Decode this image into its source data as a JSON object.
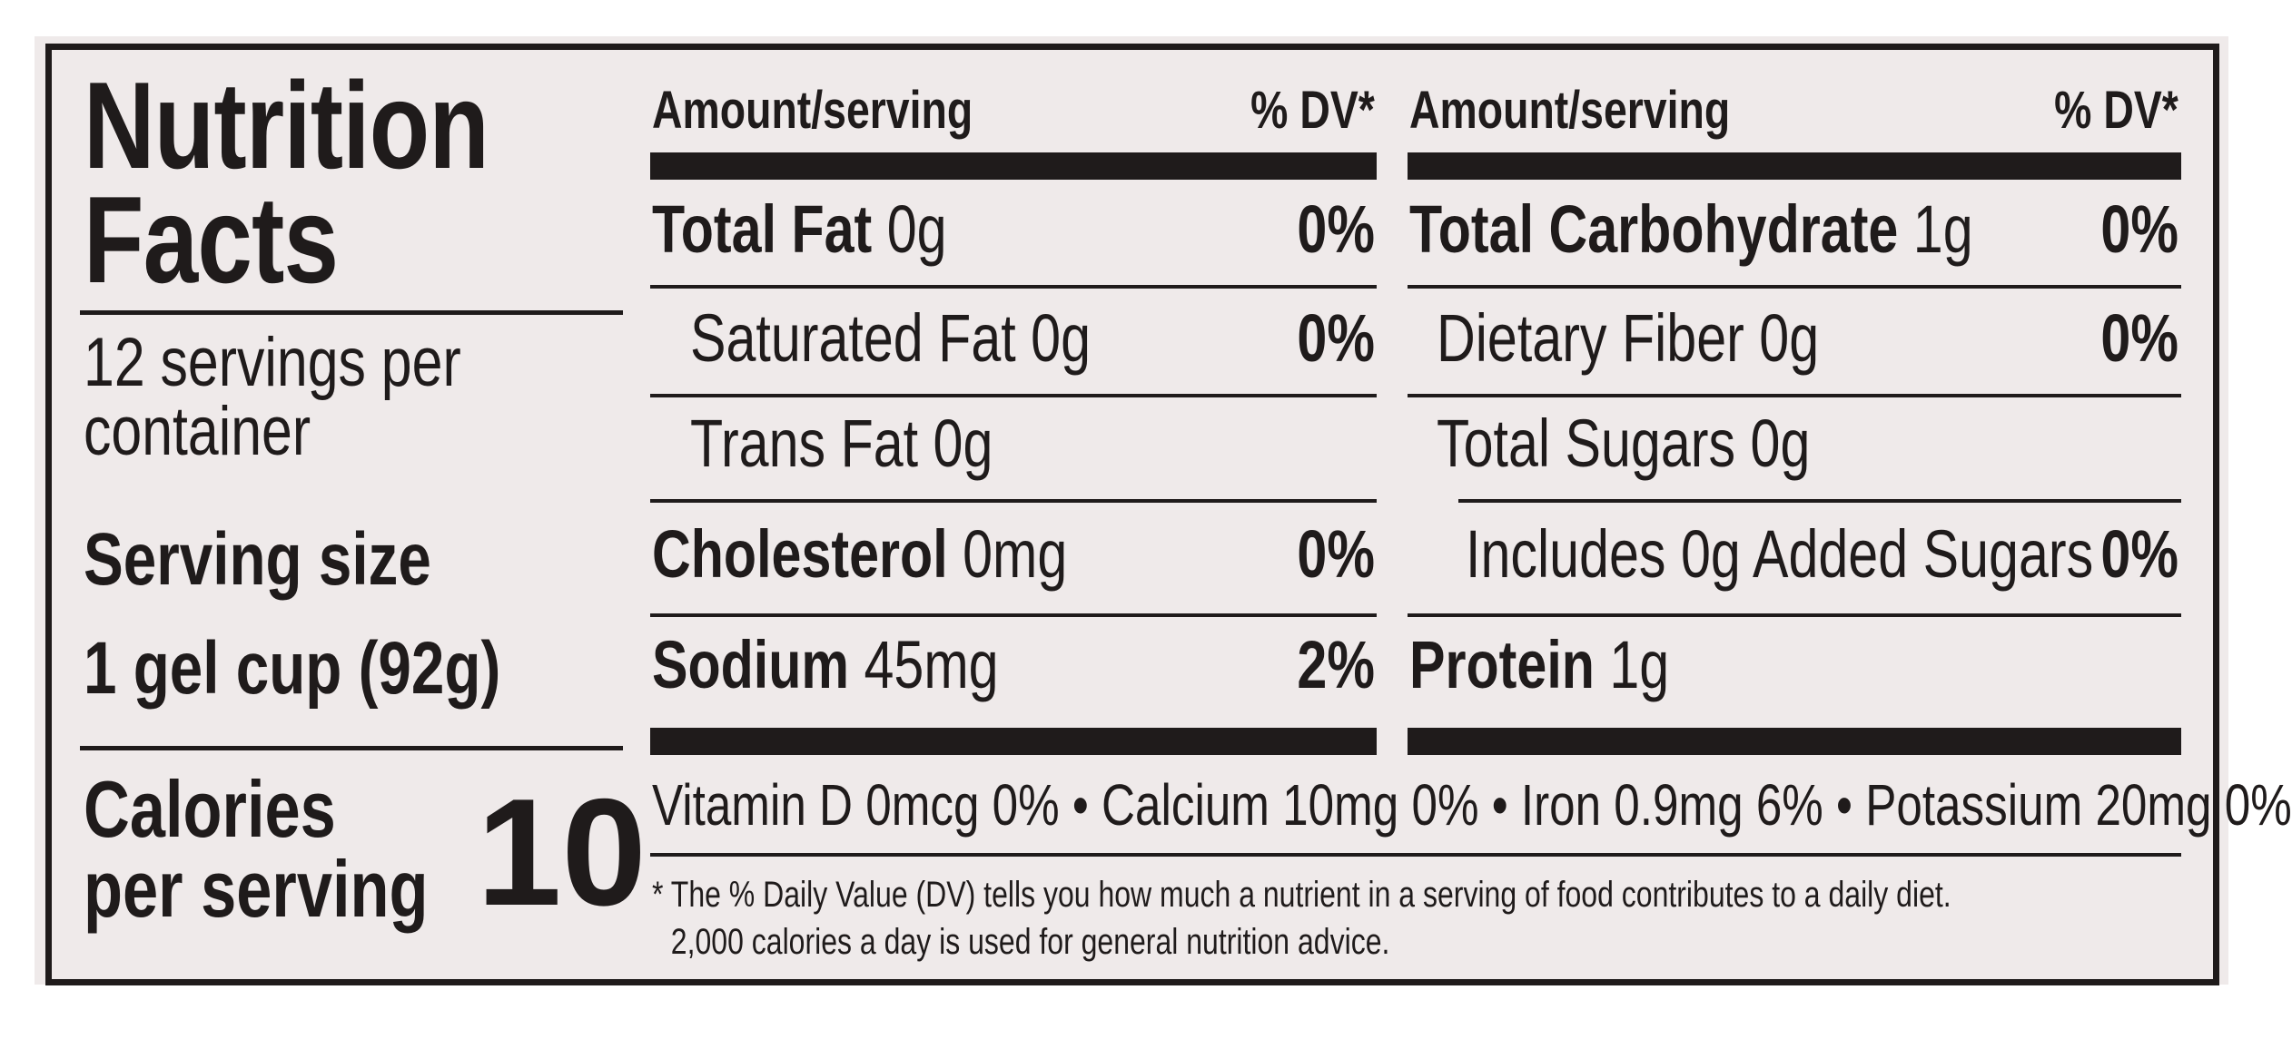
{
  "panel": {
    "title_line1": "Nutrition",
    "title_line2": "Facts",
    "servings_line1": "12 servings per",
    "servings_line2": "container",
    "serving_size_label": "Serving size",
    "serving_size_value": "1 gel cup (92g)",
    "calories_label_line1": "Calories",
    "calories_label_line2": "per serving",
    "calories_value": "10"
  },
  "left_column": {
    "header_amount": "Amount/serving",
    "header_dv": "% DV*",
    "rows": [
      {
        "name": "Total Fat",
        "amount": " 0g",
        "dv": "0%"
      },
      {
        "name": "Saturated Fat",
        "amount": " 0g",
        "dv": "0%"
      },
      {
        "name": "Trans Fat",
        "amount": " 0g",
        "dv": ""
      },
      {
        "name": "Cholesterol",
        "amount": " 0mg",
        "dv": "0%"
      },
      {
        "name": "Sodium",
        "amount": " 45mg",
        "dv": "2%"
      }
    ]
  },
  "right_column": {
    "header_amount": "Amount/serving",
    "header_dv": "% DV*",
    "rows": [
      {
        "name": "Total Carbohydrate",
        "amount": " 1g",
        "dv": "0%"
      },
      {
        "name": "Dietary Fiber",
        "amount": " 0g",
        "dv": "0%"
      },
      {
        "name": "Total Sugars",
        "amount": " 0g",
        "dv": ""
      },
      {
        "name": "Includes 0g Added Sugars",
        "amount": "",
        "dv": "0%"
      },
      {
        "name": "Protein",
        "amount": " 1g",
        "dv": ""
      }
    ]
  },
  "vitamins": "Vitamin D 0mcg 0% • Calcium 10mg 0% • Iron 0.9mg 6% • Potassium 20mg 0%",
  "footnote_line1": "* The % Daily Value (DV) tells you how much a nutrient in a serving of food contributes to a daily diet.",
  "footnote_line2": "2,000 calories a day is used for general nutrition advice.",
  "colors": {
    "ink": "#1f1b1b",
    "label_background": "#efeaea",
    "page_background": "#ffffff"
  }
}
